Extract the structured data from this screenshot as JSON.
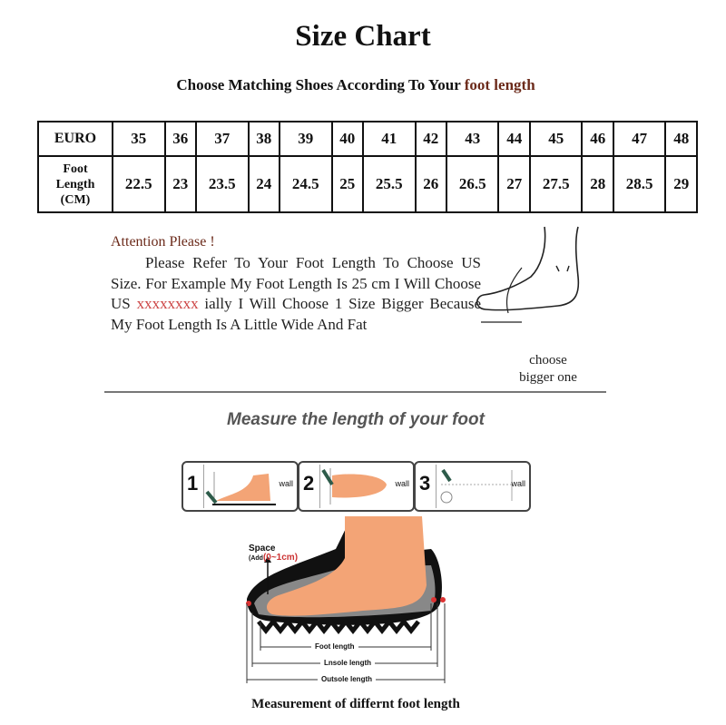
{
  "title": "Size Chart",
  "subtitle": {
    "prefix": "Choose Matching Shoes According To Your",
    "highlight": "foot length"
  },
  "table": {
    "row1_header": "EURO",
    "row2_header": [
      "Foot",
      "Length",
      "(CM)"
    ],
    "euro": [
      "35",
      "36",
      "37",
      "38",
      "39",
      "40",
      "41",
      "42",
      "43",
      "44",
      "45",
      "46",
      "47",
      "48"
    ],
    "foot_length_cm": [
      "22.5",
      "23",
      "23.5",
      "24",
      "24.5",
      "25",
      "25.5",
      "26",
      "26.5",
      "27",
      "27.5",
      "28",
      "28.5",
      "29"
    ]
  },
  "attention": {
    "heading": "Attention Please !",
    "part1": "Please Refer To Your Foot Length To Choose US Size. For Example My Foot Length Is 25 cm I Will Choose US ",
    "crossed": "xxxxxxxx",
    "part2": " ially I Will Choose 1 Size Bigger Because My Foot Length Is A Little Wide And Fat"
  },
  "choose_note": [
    "choose",
    "bigger one"
  ],
  "measure_heading": "Measure the length of your foot",
  "steps": [
    {
      "num": "1",
      "wall": "wall"
    },
    {
      "num": "2",
      "wall": "wall"
    },
    {
      "num": "3",
      "wall": "wall"
    }
  ],
  "diagram": {
    "space": "Space",
    "add_prefix": "(Add",
    "add_value": "(0~1cm)",
    "foot_length": "Foot length",
    "insole_length": "Lnsole length",
    "outsole_length": "Outsole length"
  },
  "caption": "Measurement of differnt foot length",
  "colors": {
    "highlight": "#6b2a1a",
    "skin": "#f3a476",
    "crossed": "#cc4444"
  }
}
